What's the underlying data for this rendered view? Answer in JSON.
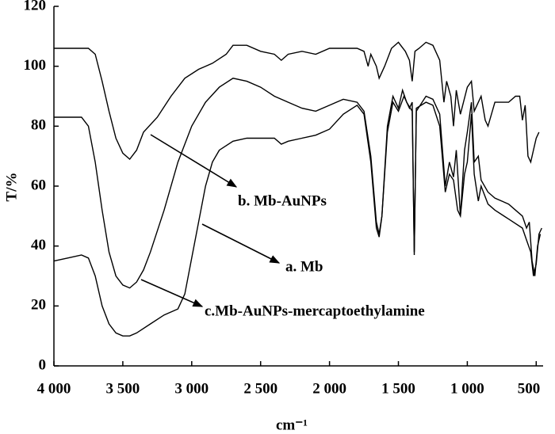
{
  "chart_data": {
    "type": "line",
    "xlabel": "cm⁻¹",
    "ylabel": "T/%",
    "xlim": [
      4000,
      450
    ],
    "ylim": [
      0,
      120
    ],
    "xticks": [
      {
        "value": 4000,
        "label": "4 000"
      },
      {
        "value": 3500,
        "label": "3 500"
      },
      {
        "value": 3000,
        "label": "3 000"
      },
      {
        "value": 2500,
        "label": "2 500"
      },
      {
        "value": 2000,
        "label": "2 000"
      },
      {
        "value": 1500,
        "label": "1 500"
      },
      {
        "value": 1000,
        "label": "1 000"
      },
      500
    ],
    "yticks": [
      0,
      20,
      40,
      60,
      80,
      100,
      120
    ],
    "grid": false,
    "series": [
      {
        "name": "b. Mb-AuNPs",
        "color": "#000000",
        "x": [
          4000,
          3750,
          3700,
          3650,
          3600,
          3550,
          3500,
          3450,
          3400,
          3350,
          3250,
          3150,
          3050,
          2950,
          2850,
          2750,
          2700,
          2600,
          2500,
          2400,
          2350,
          2300,
          2200,
          2100,
          2000,
          1900,
          1800,
          1750,
          1720,
          1700,
          1660,
          1640,
          1600,
          1550,
          1500,
          1450,
          1420,
          1400,
          1380,
          1350,
          1300,
          1250,
          1200,
          1170,
          1150,
          1120,
          1100,
          1080,
          1050,
          1000,
          970,
          950,
          900,
          870,
          850,
          800,
          700,
          650,
          620,
          600,
          580,
          560,
          540,
          520,
          500,
          480
        ],
        "values": [
          106,
          106,
          104,
          95,
          85,
          76,
          71,
          69,
          72,
          78,
          83,
          90,
          96,
          99,
          101,
          104,
          107,
          107,
          105,
          104,
          102,
          104,
          105,
          104,
          106,
          106,
          106,
          105,
          100,
          104,
          100,
          96,
          100,
          106,
          108,
          105,
          102,
          95,
          105,
          106,
          108,
          107,
          102,
          88,
          95,
          90,
          80,
          92,
          84,
          93,
          95,
          85,
          90,
          82,
          80,
          88,
          88,
          90,
          90,
          82,
          87,
          70,
          68,
          72,
          76,
          78
        ]
      },
      {
        "name": "a. Mb",
        "color": "#000000",
        "x": [
          4000,
          3800,
          3750,
          3700,
          3650,
          3600,
          3550,
          3500,
          3450,
          3400,
          3350,
          3300,
          3200,
          3100,
          3000,
          2900,
          2800,
          2700,
          2600,
          2500,
          2400,
          2300,
          2200,
          2100,
          2000,
          1900,
          1800,
          1750,
          1700,
          1660,
          1640,
          1620,
          1580,
          1540,
          1500,
          1470,
          1440,
          1400,
          1385,
          1370,
          1300,
          1250,
          1200,
          1160,
          1130,
          1100,
          1080,
          1050,
          1020,
          1000,
          970,
          950,
          920,
          900,
          850,
          800,
          700,
          650,
          600,
          570,
          550,
          530,
          510,
          490,
          470
        ],
        "values": [
          83,
          83,
          80,
          68,
          52,
          38,
          30,
          27,
          26,
          28,
          32,
          38,
          52,
          68,
          80,
          88,
          93,
          96,
          95,
          93,
          90,
          88,
          86,
          85,
          87,
          89,
          88,
          85,
          70,
          48,
          44,
          50,
          80,
          90,
          86,
          92,
          88,
          85,
          38,
          85,
          90,
          89,
          84,
          60,
          68,
          63,
          72,
          50,
          72,
          78,
          88,
          68,
          70,
          62,
          58,
          56,
          54,
          52,
          50,
          46,
          48,
          35,
          30,
          40,
          44
        ]
      },
      {
        "name": "c.Mb-AuNPs-mercaptoethylamine",
        "color": "#000000",
        "x": [
          4000,
          3900,
          3800,
          3750,
          3700,
          3650,
          3600,
          3550,
          3500,
          3450,
          3400,
          3300,
          3200,
          3100,
          3050,
          3000,
          2950,
          2900,
          2850,
          2800,
          2700,
          2600,
          2500,
          2400,
          2350,
          2300,
          2200,
          2100,
          2000,
          1900,
          1800,
          1750,
          1700,
          1660,
          1640,
          1620,
          1580,
          1540,
          1500,
          1460,
          1420,
          1400,
          1385,
          1370,
          1300,
          1250,
          1200,
          1160,
          1130,
          1100,
          1070,
          1050,
          1020,
          1000,
          970,
          950,
          920,
          900,
          850,
          800,
          700,
          600,
          570,
          540,
          520,
          500,
          480,
          460
        ],
        "values": [
          35,
          36,
          37,
          36,
          30,
          20,
          14,
          11,
          10,
          10,
          11,
          14,
          17,
          19,
          24,
          36,
          48,
          60,
          68,
          72,
          75,
          76,
          76,
          76,
          74,
          75,
          76,
          77,
          79,
          84,
          87,
          84,
          68,
          46,
          43,
          50,
          78,
          88,
          85,
          90,
          86,
          88,
          37,
          86,
          88,
          87,
          80,
          58,
          64,
          62,
          52,
          50,
          64,
          68,
          84,
          64,
          55,
          60,
          54,
          52,
          49,
          46,
          42,
          38,
          30,
          34,
          44,
          46
        ]
      }
    ]
  }
}
